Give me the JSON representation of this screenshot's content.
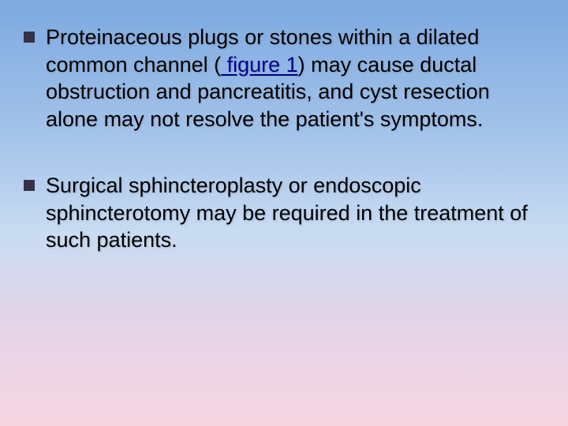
{
  "slide": {
    "background_gradient_top": "#7da9e0",
    "background_gradient_bottom": "#f5d5e0",
    "text_color": "#000000",
    "bullet_color": "#333344",
    "link_color": "#000088",
    "font_size_pt": 20,
    "bullets": [
      {
        "pre": "Proteinaceous plugs or stones within a dilated common channel (",
        "link_text": " figure 1",
        "post": ") may cause ductal obstruction and pancreatitis, and cyst resection alone may not resolve the patient's symptoms."
      },
      {
        "pre": "Surgical sphincteroplasty or endoscopic sphincterotomy may be required in the treatment of such patients.",
        "link_text": "",
        "post": ""
      }
    ]
  }
}
